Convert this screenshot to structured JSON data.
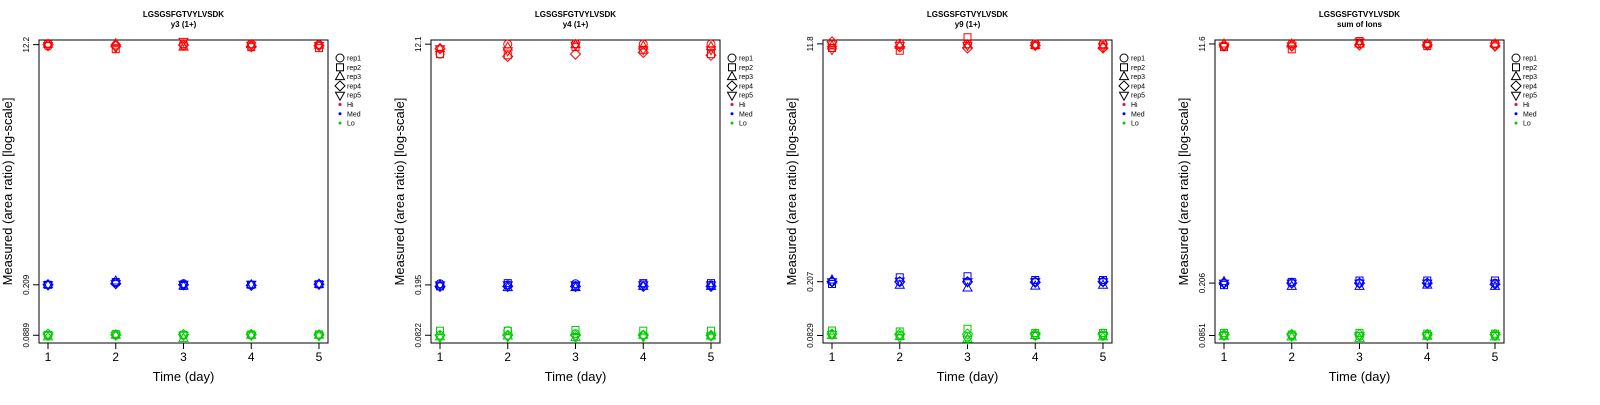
{
  "figure": {
    "peptide": "LGSGSFGTVYLVSDK",
    "xlabel": "Time (day)",
    "ylabel": "Measured (area ratio) [log-scale]",
    "x_ticks": [
      "1",
      "2",
      "3",
      "4",
      "5"
    ],
    "legend": [
      {
        "label": "rep1",
        "symbol": "circle",
        "color": "#000000"
      },
      {
        "label": "rep2",
        "symbol": "square",
        "color": "#000000"
      },
      {
        "label": "rep3",
        "symbol": "triangle-up",
        "color": "#000000"
      },
      {
        "label": "rep4",
        "symbol": "diamond",
        "color": "#000000"
      },
      {
        "label": "rep5",
        "symbol": "triangle-down",
        "color": "#000000"
      },
      {
        "label": "Hi",
        "symbol": "dot",
        "color": "#ff0000"
      },
      {
        "label": "Med",
        "symbol": "dot",
        "color": "#0000ff"
      },
      {
        "label": "Lo",
        "symbol": "dot",
        "color": "#00cc00"
      }
    ]
  },
  "chart_data": [
    {
      "type": "scatter",
      "title": "LGSGSFGTVYLVSDK",
      "subtitle": "y3 (1+)",
      "xlabel": "Time (day)",
      "ylabel": "Measured (area ratio) [log-scale]",
      "y_scale": "log",
      "x": [
        1,
        2,
        3,
        4,
        5
      ],
      "y_ticks": [
        "0.0889",
        "0.209",
        "12.2"
      ],
      "ylim": [
        0.078,
        13.2
      ],
      "grid": false,
      "legend_position": "right",
      "series": [
        {
          "group": "Hi",
          "color": "#ff0000",
          "replicates": [
            [
              11.9,
              12.3,
              12.3,
              12.2,
              12.0
            ],
            [
              12.1,
              11.3,
              12.4,
              11.9,
              11.6
            ],
            [
              12.4,
              12.0,
              11.7,
              12.1,
              12.9
            ],
            [
              12.3,
              11.7,
              12.2,
              11.8,
              12.1
            ],
            [
              12.2,
              11.5,
              12.1,
              12.0,
              12.0
            ]
          ]
        },
        {
          "group": "Med",
          "color": "#0000ff",
          "replicates": [
            [
              0.209,
              0.209,
              0.209,
              0.209,
              0.209
            ],
            [
              0.217,
              0.219,
              0.223,
              0.213,
              0.213
            ],
            [
              0.213,
              0.205,
              0.205,
              0.209,
              0.211
            ],
            [
              0.209,
              0.209,
              0.209,
              0.207,
              0.211
            ],
            [
              0.211,
              0.211,
              0.211,
              0.211,
              0.211
            ]
          ]
        },
        {
          "group": "Lo",
          "color": "#00cc00",
          "replicates": [
            [
              0.0889,
              0.0896,
              0.0866,
              0.0908,
              0.0889
            ],
            [
              0.0889,
              0.0908,
              0.0889,
              0.0896,
              0.0889
            ],
            [
              0.0889,
              0.0896,
              0.0843,
              0.09,
              0.0889
            ],
            [
              0.0889,
              0.0902,
              0.0889,
              0.0902,
              0.0889
            ],
            [
              0.0889,
              0.0902,
              0.0889,
              0.0896,
              0.088
            ]
          ]
        }
      ]
    },
    {
      "type": "scatter",
      "title": "LGSGSFGTVYLVSDK",
      "subtitle": "y4 (1+)",
      "xlabel": "Time (day)",
      "ylabel": "Measured (area ratio) [log-scale]",
      "y_scale": "log",
      "x": [
        1,
        2,
        3,
        4,
        5
      ],
      "y_ticks": [
        "0.0822",
        "0.195",
        "12.1"
      ],
      "ylim": [
        0.072,
        13.0
      ],
      "grid": false,
      "legend_position": "right",
      "series": [
        {
          "group": "Hi",
          "color": "#ff0000",
          "replicates": [
            [
              10.2,
              10.2,
              11.2,
              11.2,
              11.2
            ],
            [
              12.1,
              10.0,
              11.5,
              9.8,
              10.8
            ],
            [
              12.2,
              11.5,
              12.0,
              10.2,
              11.9
            ],
            [
              12.1,
              11.0,
              11.7,
              10.5,
              11.0
            ],
            [
              12.1,
              10.2,
              11.6,
              10.0,
              11.0
            ]
          ]
        },
        {
          "group": "Med",
          "color": "#0000ff",
          "replicates": [
            [
              0.199,
              0.19,
              0.195,
              0.19,
              0.195
            ],
            [
              0.195,
              0.201,
              0.186,
              0.19,
              0.195
            ],
            [
              0.199,
              0.19,
              0.186,
              0.19,
              0.195
            ],
            [
              0.199,
              0.201,
              0.19,
              0.19,
              0.195
            ],
            [
              0.195,
              0.201,
              0.19,
              0.19,
              0.195
            ]
          ]
        },
        {
          "group": "Lo",
          "color": "#00cc00",
          "replicates": [
            [
              0.0822,
              0.0889,
              0.08,
              0.0822,
              0.0791
            ],
            [
              0.0888,
              0.0889,
              0.0811,
              0.0822,
              0.08
            ],
            [
              0.0845,
              0.09,
              0.079,
              0.0822,
              0.0791
            ],
            [
              0.0822,
              0.0889,
              0.0822,
              0.0822,
              0.08
            ],
            [
              0.0811,
              0.0889,
              0.0811,
              0.0822,
              0.0811
            ]
          ]
        }
      ]
    },
    {
      "type": "scatter",
      "title": "LGSGSFGTVYLVSDK",
      "subtitle": "y9 (1+)",
      "xlabel": "Time (day)",
      "ylabel": "Measured (area ratio) [log-scale]",
      "y_scale": "log",
      "x": [
        1,
        2,
        3,
        4,
        5
      ],
      "y_ticks": [
        "0.0829",
        "0.207",
        "11.8"
      ],
      "ylim": [
        0.073,
        12.6
      ],
      "grid": false,
      "legend_position": "right",
      "series": [
        {
          "group": "Hi",
          "color": "#ff0000",
          "replicates": [
            [
              11.7,
              11.0,
              11.4,
              12.2,
              10.7
            ],
            [
              11.9,
              10.5,
              11.5,
              11.2,
              11.5
            ],
            [
              11.8,
              13.2,
              11.6,
              11.0,
              11.5
            ],
            [
              11.8,
              11.5,
              11.5,
              11.5,
              11.5
            ],
            [
              11.8,
              11.5,
              11.4,
              11.0,
              11.2
            ]
          ]
        },
        {
          "group": "Med",
          "color": "#0000ff",
          "replicates": [
            [
              0.207,
              0.199,
              0.213,
              0.207,
              0.207
            ],
            [
              0.207,
              0.223,
              0.195,
              0.207,
              0.209
            ],
            [
              0.207,
              0.227,
              0.186,
              0.207,
              0.207
            ],
            [
              0.207,
              0.213,
              0.192,
              0.205,
              0.207
            ],
            [
              0.207,
              0.213,
              0.195,
              0.207,
              0.207
            ]
          ]
        },
        {
          "group": "Lo",
          "color": "#00cc00",
          "replicates": [
            [
              0.0845,
              0.0902,
              0.0829,
              0.085,
              0.0845
            ],
            [
              0.0829,
              0.0888,
              0.0815,
              0.085,
              0.08
            ],
            [
              0.081,
              0.093,
              0.078,
              0.085,
              0.078
            ],
            [
              0.0829,
              0.0866,
              0.0829,
              0.085,
              0.0829
            ],
            [
              0.0829,
              0.0866,
              0.081,
              0.085,
              0.0829
            ]
          ]
        }
      ]
    },
    {
      "type": "scatter",
      "title": "LGSGSFGTVYLVSDK",
      "subtitle": "sum of Ions",
      "xlabel": "Time (day)",
      "ylabel": "Measured (area ratio) [log-scale]",
      "y_scale": "log",
      "x": [
        1,
        2,
        3,
        4,
        5
      ],
      "y_ticks": [
        "0.0851",
        "0.206",
        "11.6"
      ],
      "ylim": [
        0.075,
        12.4
      ],
      "grid": false,
      "legend_position": "right",
      "series": [
        {
          "group": "Hi",
          "color": "#ff0000",
          "replicates": [
            [
              11.2,
              11.0,
              11.6,
              11.4,
              11.2
            ],
            [
              11.6,
              10.6,
              11.6,
              11.2,
              11.2
            ],
            [
              11.6,
              12.2,
              11.6,
              11.4,
              12.0
            ],
            [
              11.6,
              11.2,
              11.6,
              11.4,
              11.4
            ],
            [
              11.6,
              11.6,
              11.6,
              11.2,
              11.2
            ]
          ]
        },
        {
          "group": "Med",
          "color": "#0000ff",
          "replicates": [
            [
              0.206,
              0.199,
              0.211,
              0.206,
              0.206
            ],
            [
              0.206,
              0.21,
              0.195,
              0.206,
              0.206
            ],
            [
              0.206,
              0.215,
              0.195,
              0.206,
              0.206
            ],
            [
              0.206,
              0.215,
              0.199,
              0.206,
              0.206
            ],
            [
              0.206,
              0.215,
              0.195,
              0.202,
              0.206
            ]
          ]
        },
        {
          "group": "Lo",
          "color": "#00cc00",
          "replicates": [
            [
              0.0851,
              0.089,
              0.084,
              0.0866,
              0.0851
            ],
            [
              0.0851,
              0.0865,
              0.083,
              0.0866,
              0.084
            ],
            [
              0.084,
              0.089,
              0.081,
              0.0866,
              0.0851
            ],
            [
              0.0851,
              0.0878,
              0.084,
              0.0866,
              0.0851
            ],
            [
              0.0851,
              0.0878,
              0.083,
              0.0866,
              0.0851
            ]
          ]
        }
      ]
    }
  ]
}
